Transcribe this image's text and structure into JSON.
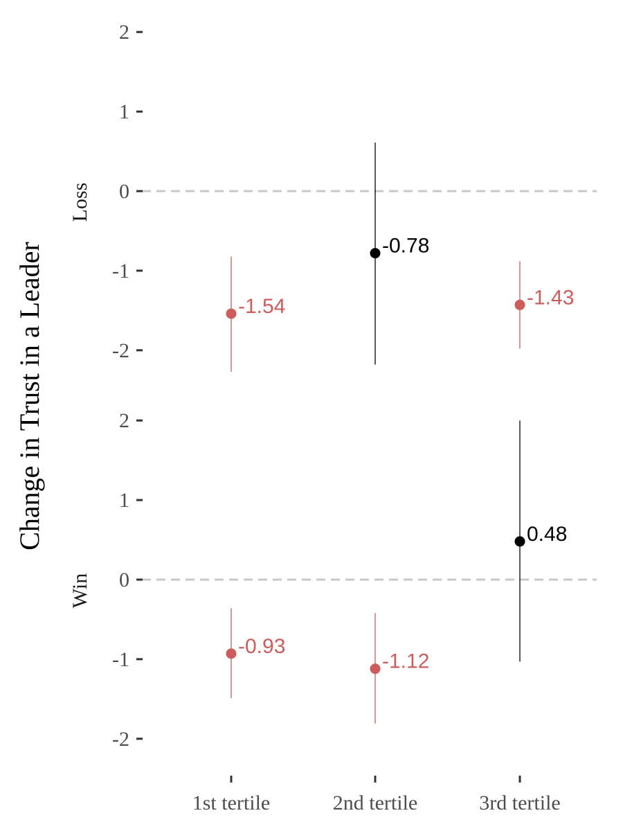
{
  "chart_data": {
    "type": "scatter",
    "ylabel": "Change in Trust in a Leader",
    "xlabel": "",
    "categories": [
      "1st tertile",
      "2nd tertile",
      "3rd tertile"
    ],
    "reference_line": 0,
    "colors": {
      "significant": "#cd5c5c",
      "not_significant": "#000000",
      "reference": "#c8c8c8"
    },
    "grid": false,
    "facets": [
      {
        "label": "Loss",
        "ylim": [
          -2.5,
          2
        ],
        "yticks": [
          "2",
          "1",
          "0",
          "-1",
          "-2"
        ],
        "points": [
          {
            "category": "1st tertile",
            "estimate": -1.54,
            "label": "-1.54",
            "lower": -2.27,
            "upper": -0.82,
            "significant": true
          },
          {
            "category": "2nd tertile",
            "estimate": -0.78,
            "label": "-0.78",
            "lower": -2.18,
            "upper": 0.61,
            "significant": false
          },
          {
            "category": "3rd tertile",
            "estimate": -1.43,
            "label": "-1.43",
            "lower": -1.98,
            "upper": -0.88,
            "significant": true
          }
        ]
      },
      {
        "label": "Win",
        "ylim": [
          -2.35,
          2
        ],
        "yticks": [
          "2",
          "1",
          "0",
          "-1",
          "-2"
        ],
        "points": [
          {
            "category": "1st tertile",
            "estimate": -0.93,
            "label": "-0.93",
            "lower": -1.49,
            "upper": -0.36,
            "significant": true
          },
          {
            "category": "2nd tertile",
            "estimate": -1.12,
            "label": "-1.12",
            "lower": -1.81,
            "upper": -0.42,
            "significant": true
          },
          {
            "category": "3rd tertile",
            "estimate": 0.48,
            "label": "0.48",
            "lower": -1.03,
            "upper": 2.0,
            "significant": false
          }
        ]
      }
    ]
  }
}
